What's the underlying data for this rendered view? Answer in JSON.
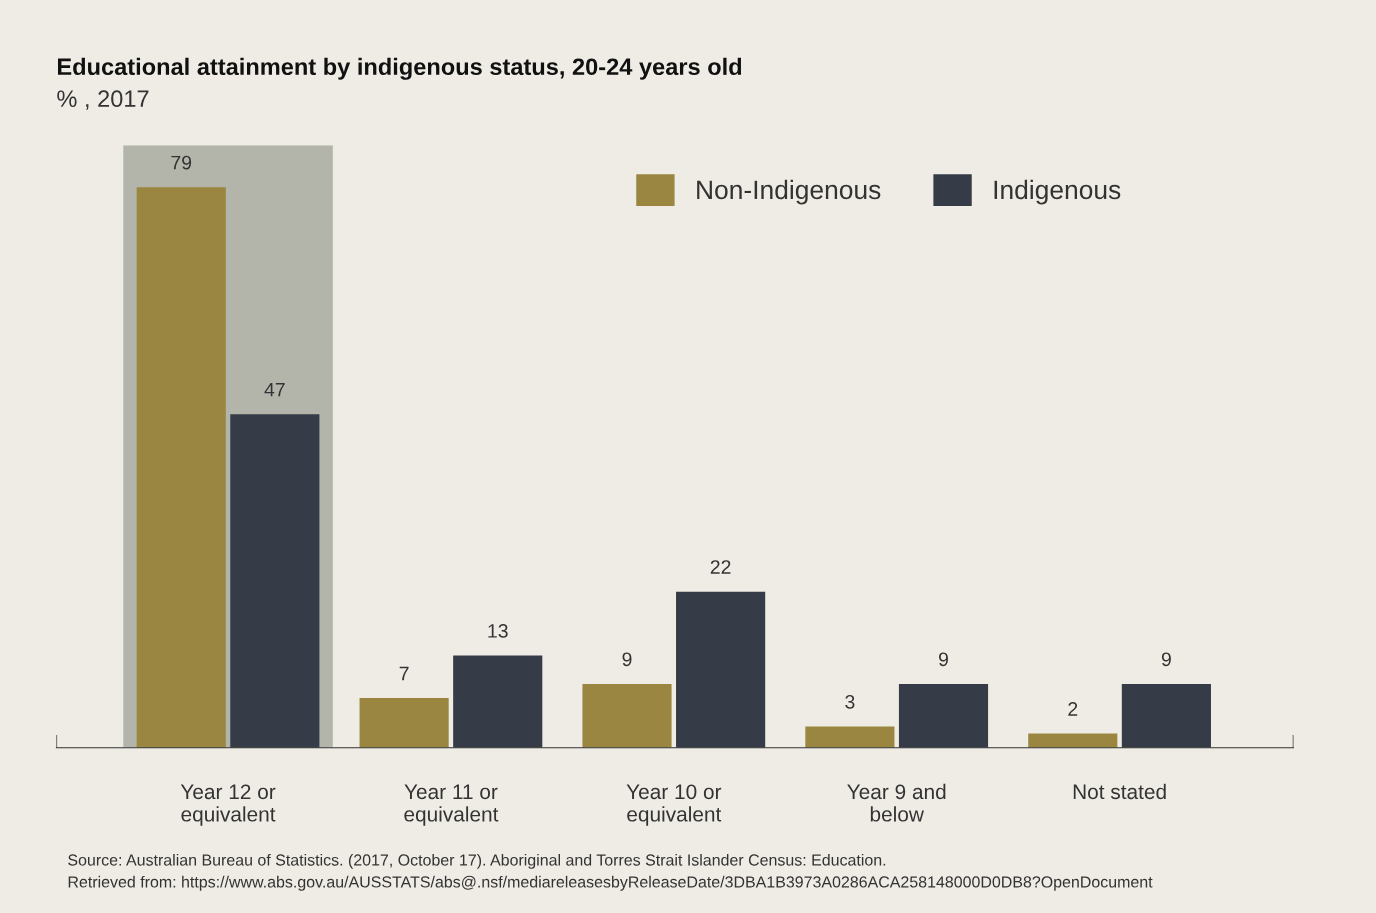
{
  "chart_data": {
    "type": "bar",
    "title": "Educational attainment by indigenous status, 20-24 years old",
    "subtitle": "% , 2017",
    "categories": [
      "Year 12 or equivalent",
      "Year 11 or equivalent",
      "Year 10 or equivalent",
      "Year 9 and below",
      "Not stated"
    ],
    "series": [
      {
        "name": "Non-Indigenous",
        "color": "#9b8641",
        "values": [
          79,
          7,
          9,
          3,
          2
        ]
      },
      {
        "name": "Indigenous",
        "color": "#353b47",
        "values": [
          47,
          13,
          22,
          9,
          9
        ]
      }
    ],
    "bands": [
      {
        "axis": "x",
        "from": "Year 12 or equivalent",
        "to": "Year 12 or equivalent",
        "color": "#b3b5ab"
      }
    ],
    "data_labels": true,
    "legend": "top right",
    "grid": false,
    "tick_labels": "x",
    "annotations": [
      "Source: Australian Bureau of Statistics. (2017, October 17). Aboriginal and Torres Strait Islander Census: Education.",
      "Retrieved from: https://www.abs.gov.au/AUSSTATS/abs@.nsf/mediareleasesbyReleaseDate/3DBA1B3973A0286ACA258148000D0DB8?OpenDocument"
    ]
  }
}
